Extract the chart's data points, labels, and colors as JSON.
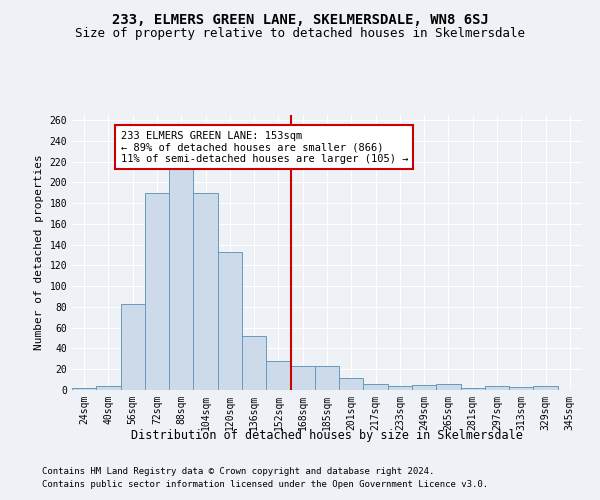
{
  "title": "233, ELMERS GREEN LANE, SKELMERSDALE, WN8 6SJ",
  "subtitle": "Size of property relative to detached houses in Skelmersdale",
  "xlabel": "Distribution of detached houses by size in Skelmersdale",
  "ylabel": "Number of detached properties",
  "footer1": "Contains HM Land Registry data © Crown copyright and database right 2024.",
  "footer2": "Contains public sector information licensed under the Open Government Licence v3.0.",
  "categories": [
    "24sqm",
    "40sqm",
    "56sqm",
    "72sqm",
    "88sqm",
    "104sqm",
    "120sqm",
    "136sqm",
    "152sqm",
    "168sqm",
    "185sqm",
    "201sqm",
    "217sqm",
    "233sqm",
    "249sqm",
    "265sqm",
    "281sqm",
    "297sqm",
    "313sqm",
    "329sqm",
    "345sqm"
  ],
  "values": [
    2,
    4,
    83,
    190,
    215,
    190,
    133,
    52,
    28,
    23,
    23,
    12,
    6,
    4,
    5,
    6,
    2,
    4,
    3,
    4,
    0
  ],
  "bar_color": "#ccdaea",
  "bar_edge_color": "#6699bb",
  "vline_x": 8.5,
  "vline_color": "#cc0000",
  "annotation_text": "233 ELMERS GREEN LANE: 153sqm\n← 89% of detached houses are smaller (866)\n11% of semi-detached houses are larger (105) →",
  "annotation_box_color": "#ffffff",
  "annotation_box_edge": "#cc0000",
  "ylim": [
    0,
    265
  ],
  "yticks": [
    0,
    20,
    40,
    60,
    80,
    100,
    120,
    140,
    160,
    180,
    200,
    220,
    240,
    260
  ],
  "bg_color": "#eef2f7",
  "grid_color": "#ffffff",
  "title_fontsize": 10,
  "subtitle_fontsize": 9,
  "xlabel_fontsize": 8.5,
  "ylabel_fontsize": 8,
  "tick_fontsize": 7,
  "annotation_fontsize": 7.5,
  "footer_fontsize": 6.5
}
